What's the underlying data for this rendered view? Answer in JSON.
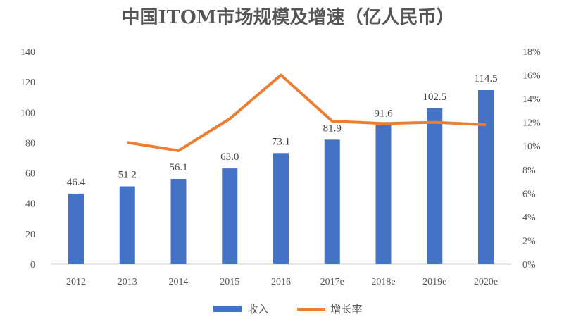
{
  "chart_data": {
    "type": "bar+line",
    "title": "中国ITOM市场规模及增速（亿人民币）",
    "categories": [
      "2012",
      "2013",
      "2014",
      "2015",
      "2016",
      "2017e",
      "2018e",
      "2019e",
      "2020e"
    ],
    "series": [
      {
        "name": "收入",
        "type": "bar",
        "axis": "left",
        "color": "#4472C4",
        "values": [
          46.4,
          51.2,
          56.1,
          63.0,
          73.1,
          81.9,
          91.6,
          102.5,
          114.5
        ],
        "labels": [
          "46.4",
          "51.2",
          "56.1",
          "63.0",
          "73.1",
          "81.9",
          "91.6",
          "102.5",
          "114.5"
        ]
      },
      {
        "name": "增长率",
        "type": "line",
        "axis": "right",
        "color": "#ED7D31",
        "values": [
          null,
          10.3,
          9.6,
          12.3,
          16.0,
          12.1,
          11.9,
          12.0,
          11.8
        ]
      }
    ],
    "yleft": {
      "lim": [
        0,
        140
      ],
      "ticks": [
        "0",
        "20",
        "40",
        "60",
        "80",
        "100",
        "120",
        "140"
      ]
    },
    "yright": {
      "lim": [
        0,
        18
      ],
      "ticks": [
        "0%",
        "2%",
        "4%",
        "6%",
        "8%",
        "10%",
        "12%",
        "14%",
        "16%",
        "18%"
      ]
    },
    "grid": false,
    "legend": "bottom"
  }
}
